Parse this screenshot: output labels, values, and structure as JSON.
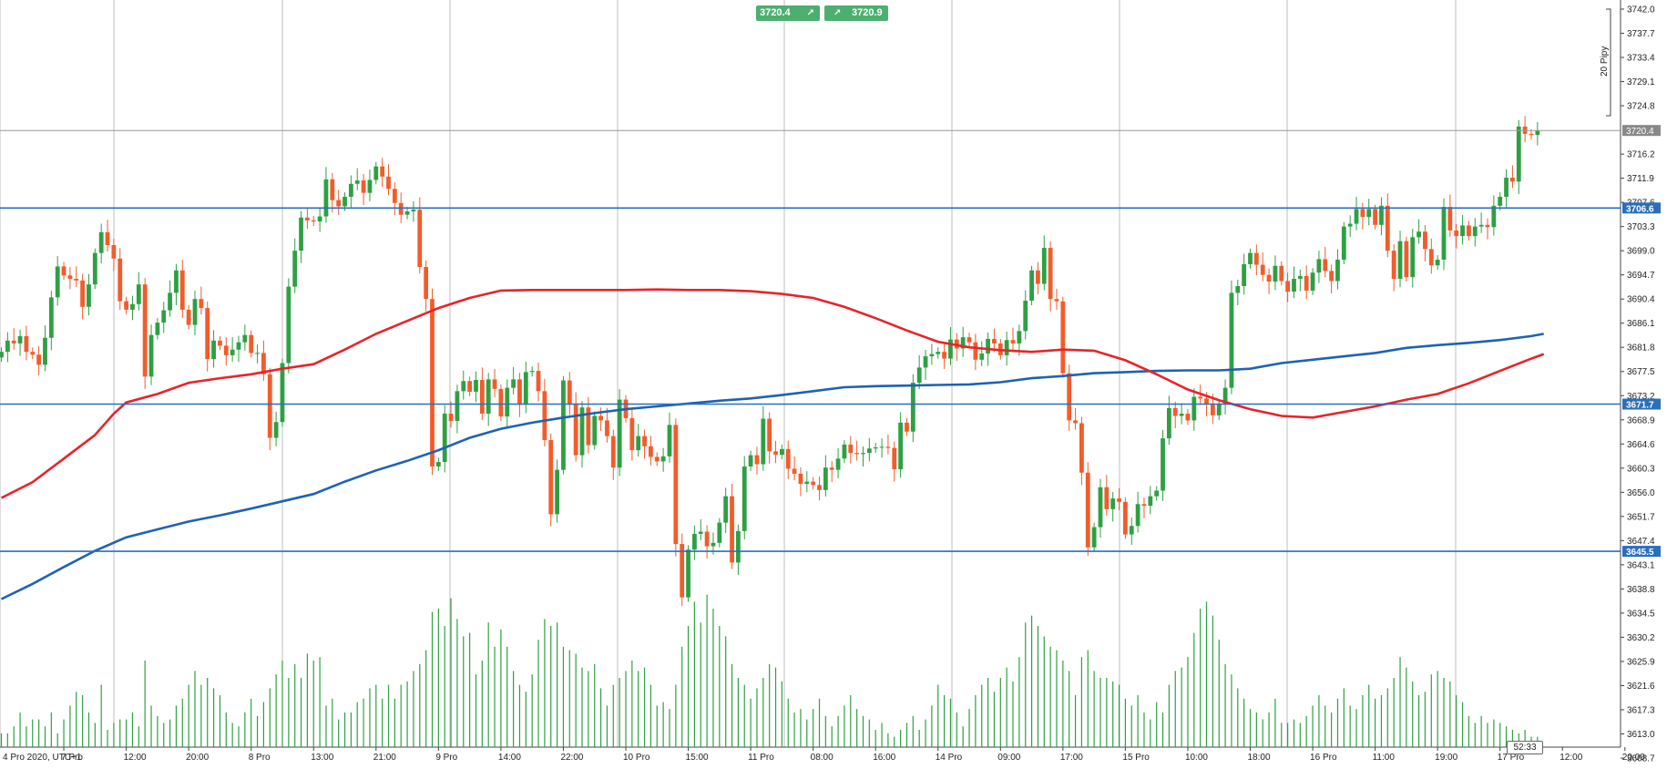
{
  "trade_buttons": {
    "sell_price": "3720.4",
    "buy_price": "3720.9",
    "sell_icon": "arrow-up-right-icon",
    "buy_icon": "arrow-up-right-icon"
  },
  "pip_scale_label": "20 Pipy",
  "candle_timer": "52:33",
  "colors": {
    "up": "#2ea043",
    "down": "#f25c2a",
    "sma_fast": "#e8232a",
    "sma_slow": "#1e62b4",
    "hline": "#2a6fbd",
    "volume": "#2ea043",
    "grid": "#c8c8c8",
    "price_tag": "#888888"
  },
  "chart_data": {
    "type": "candlestick",
    "timezone": "UTC+1",
    "y_ticks": [
      "3742.0",
      "3737.7",
      "3733.4",
      "3729.1",
      "3724.8",
      "3716.2",
      "3711.9",
      "3707.6",
      "3703.3",
      "3699.0",
      "3694.7",
      "3690.4",
      "3686.1",
      "3681.8",
      "3677.5",
      "3673.2",
      "3668.9",
      "3664.6",
      "3660.3",
      "3656.0",
      "3651.7",
      "3647.4",
      "3643.1",
      "3638.8",
      "3634.5",
      "3630.2",
      "3625.9",
      "3621.6",
      "3617.3",
      "3613.0",
      "3608.7"
    ],
    "x_ticks": [
      {
        "label": "4 Pro 2020, UTC+1",
        "x": 0
      },
      {
        "label": "7 Pro",
        "x": 10
      },
      {
        "label": "12:00",
        "x": 20
      },
      {
        "label": "20:00",
        "x": 30
      },
      {
        "label": "8 Pro",
        "x": 40
      },
      {
        "label": "13:00",
        "x": 50
      },
      {
        "label": "21:00",
        "x": 60
      },
      {
        "label": "9 Pro",
        "x": 70
      },
      {
        "label": "14:00",
        "x": 80
      },
      {
        "label": "22:00",
        "x": 90
      },
      {
        "label": "10 Pro",
        "x": 100
      },
      {
        "label": "15:00",
        "x": 110
      },
      {
        "label": "11 Pro",
        "x": 120
      },
      {
        "label": "08:00",
        "x": 130
      },
      {
        "label": "16:00",
        "x": 140
      },
      {
        "label": "14 Pro",
        "x": 150
      },
      {
        "label": "09:00",
        "x": 160
      },
      {
        "label": "17:00",
        "x": 170
      },
      {
        "label": "15 Pro",
        "x": 180
      },
      {
        "label": "10:00",
        "x": 190
      },
      {
        "label": "18:00",
        "x": 200
      },
      {
        "label": "16 Pro",
        "x": 210
      },
      {
        "label": "11:00",
        "x": 220
      },
      {
        "label": "19:00",
        "x": 230
      },
      {
        "label": "17 Pro",
        "x": 240
      },
      {
        "label": "12:00",
        "x": 250
      },
      {
        "label": "20:00",
        "x": 260
      }
    ],
    "current_price": 3720.4,
    "horizontal_levels": [
      3706.6,
      3671.7,
      3645.5
    ],
    "close": [
      3681.0,
      3683.0,
      3682.5,
      3683.8,
      3681.0,
      3680.5,
      3678.7,
      3683.5,
      3690.7,
      3696.2,
      3694.6,
      3694.0,
      3693.7,
      3689.0,
      3693.0,
      3698.6,
      3702.3,
      3700.0,
      3697.6,
      3690.0,
      3688.5,
      3689.5,
      3693.0,
      3676.6,
      3684.0,
      3686.2,
      3688.4,
      3691.5,
      3695.5,
      3688.5,
      3685.8,
      3690.4,
      3688.8,
      3679.7,
      3683.0,
      3682.1,
      3680.4,
      3681.4,
      3682.7,
      3684.0,
      3680.8,
      3680.8,
      3677.0,
      3665.7,
      3668.5,
      3679.0,
      3692.6,
      3699.0,
      3704.9,
      3704.4,
      3704.2,
      3705.1,
      3711.7,
      3708.0,
      3706.9,
      3708.6,
      3710.9,
      3711.5,
      3709.3,
      3711.6,
      3714.0,
      3712.2,
      3710.0,
      3707.5,
      3705.4,
      3706.0,
      3706.3,
      3696.1,
      3690.4,
      3660.6,
      3661.4,
      3670.0,
      3668.7,
      3674.0,
      3675.8,
      3673.9,
      3676.0,
      3670.0,
      3676.1,
      3674.4,
      3669.5,
      3674.6,
      3676.1,
      3671.6,
      3677.4,
      3677.6,
      3674.0,
      3665.3,
      3652.1,
      3660.0,
      3675.9,
      3671.6,
      3662.6,
      3671.1,
      3664.4,
      3669.6,
      3668.8,
      3666.0,
      3660.4,
      3672.5,
      3669.2,
      3663.5,
      3666.0,
      3664.2,
      3662.3,
      3661.5,
      3662.4,
      3668.0,
      3646.8,
      3637.3,
      3645.8,
      3648.6,
      3649.0,
      3646.4,
      3647.0,
      3650.6,
      3655.3,
      3643.5,
      3649.1,
      3660.6,
      3662.6,
      3661.0,
      3669.1,
      3663.3,
      3662.7,
      3663.7,
      3660.2,
      3659.3,
      3657.5,
      3657.9,
      3657.3,
      3656.4,
      3660.4,
      3660.0,
      3662.0,
      3664.5,
      3663.0,
      3662.8,
      3663.0,
      3663.8,
      3664.0,
      3664.1,
      3663.9,
      3660.1,
      3668.4,
      3666.8,
      3675.5,
      3678.2,
      3680.2,
      3680.6,
      3681.0,
      3679.8,
      3683.2,
      3681.6,
      3683.6,
      3682.7,
      3679.6,
      3680.7,
      3683.3,
      3682.5,
      3680.4,
      3683.1,
      3682.5,
      3684.7,
      3690.1,
      3695.5,
      3693.1,
      3699.5,
      3690.4,
      3690.0,
      3677.2,
      3668.8,
      3668.3,
      3659.5,
      3646.2,
      3649.8,
      3656.9,
      3653.0,
      3654.9,
      3654.3,
      3648.5,
      3650.0,
      3653.9,
      3653.6,
      3655.3,
      3656.3,
      3665.6,
      3671.0,
      3669.6,
      3670.0,
      3668.8,
      3673.0,
      3672.7,
      3671.7,
      3669.7,
      3671.7,
      3674.6,
      3691.5,
      3692.7,
      3696.6,
      3698.6,
      3696.5,
      3694.7,
      3693.5,
      3696.3,
      3693.6,
      3691.7,
      3694.0,
      3694.5,
      3691.9,
      3695.1,
      3697.5,
      3695.4,
      3693.6,
      3697.4,
      3703.3,
      3703.8,
      3706.4,
      3705.0,
      3706.4,
      3703.6,
      3707.0,
      3699.0,
      3694.0,
      3700.7,
      3694.3,
      3701.4,
      3702.4,
      3699.3,
      3696.4,
      3697.4,
      3706.8,
      3702.6,
      3701.6,
      3703.5,
      3701.6,
      3703.3,
      3703.6,
      3703.2,
      3707.0,
      3708.6,
      3712.0,
      3711.3,
      3721.1,
      3719.8,
      3719.6,
      3720.4
    ],
    "sma_fast": [
      [
        0,
        3655.0
      ],
      [
        5,
        3657.8
      ],
      [
        10,
        3662.0
      ],
      [
        15,
        3666.2
      ],
      [
        18,
        3670.0
      ],
      [
        20,
        3672.0
      ],
      [
        25,
        3673.5
      ],
      [
        30,
        3675.5
      ],
      [
        35,
        3676.3
      ],
      [
        40,
        3677.0
      ],
      [
        45,
        3678.0
      ],
      [
        50,
        3678.8
      ],
      [
        55,
        3681.4
      ],
      [
        60,
        3684.2
      ],
      [
        65,
        3686.5
      ],
      [
        70,
        3688.8
      ],
      [
        75,
        3690.6
      ],
      [
        80,
        3691.9
      ],
      [
        85,
        3692.0
      ],
      [
        90,
        3692.0
      ],
      [
        100,
        3692.0
      ],
      [
        105,
        3692.1
      ],
      [
        110,
        3692.0
      ],
      [
        115,
        3692.0
      ],
      [
        120,
        3691.8
      ],
      [
        125,
        3691.3
      ],
      [
        130,
        3690.6
      ],
      [
        135,
        3689.0
      ],
      [
        140,
        3687.0
      ],
      [
        145,
        3684.8
      ],
      [
        150,
        3682.8
      ],
      [
        155,
        3681.8
      ],
      [
        160,
        3681.3
      ],
      [
        165,
        3681.0
      ],
      [
        170,
        3681.4
      ],
      [
        175,
        3681.2
      ],
      [
        180,
        3679.5
      ],
      [
        185,
        3677.0
      ],
      [
        190,
        3674.3
      ],
      [
        195,
        3672.4
      ],
      [
        200,
        3670.8
      ],
      [
        205,
        3669.6
      ],
      [
        210,
        3669.3
      ],
      [
        215,
        3670.3
      ],
      [
        220,
        3671.3
      ],
      [
        225,
        3672.5
      ],
      [
        230,
        3673.5
      ],
      [
        235,
        3675.4
      ],
      [
        240,
        3677.6
      ],
      [
        245,
        3679.8
      ],
      [
        247,
        3680.6
      ]
    ],
    "sma_slow": [
      [
        0,
        3637.0
      ],
      [
        5,
        3639.7
      ],
      [
        10,
        3642.7
      ],
      [
        15,
        3645.6
      ],
      [
        20,
        3648.0
      ],
      [
        25,
        3649.4
      ],
      [
        30,
        3650.8
      ],
      [
        35,
        3651.9
      ],
      [
        40,
        3653.1
      ],
      [
        45,
        3654.4
      ],
      [
        50,
        3655.7
      ],
      [
        55,
        3657.9
      ],
      [
        60,
        3659.9
      ],
      [
        65,
        3661.6
      ],
      [
        70,
        3663.5
      ],
      [
        75,
        3665.7
      ],
      [
        80,
        3667.3
      ],
      [
        85,
        3668.4
      ],
      [
        90,
        3669.3
      ],
      [
        95,
        3670.1
      ],
      [
        100,
        3670.8
      ],
      [
        105,
        3671.3
      ],
      [
        110,
        3671.8
      ],
      [
        115,
        3672.3
      ],
      [
        120,
        3672.7
      ],
      [
        125,
        3673.3
      ],
      [
        130,
        3674.0
      ],
      [
        135,
        3674.7
      ],
      [
        140,
        3674.9
      ],
      [
        145,
        3675.0
      ],
      [
        150,
        3675.1
      ],
      [
        155,
        3675.2
      ],
      [
        160,
        3675.6
      ],
      [
        165,
        3676.3
      ],
      [
        170,
        3676.7
      ],
      [
        175,
        3677.2
      ],
      [
        180,
        3677.4
      ],
      [
        185,
        3677.6
      ],
      [
        190,
        3677.7
      ],
      [
        195,
        3677.7
      ],
      [
        200,
        3678.0
      ],
      [
        205,
        3679.0
      ],
      [
        210,
        3679.6
      ],
      [
        215,
        3680.2
      ],
      [
        220,
        3680.8
      ],
      [
        225,
        3681.7
      ],
      [
        230,
        3682.2
      ],
      [
        235,
        3682.6
      ],
      [
        240,
        3683.1
      ],
      [
        245,
        3683.8
      ],
      [
        247,
        3684.2
      ]
    ]
  }
}
